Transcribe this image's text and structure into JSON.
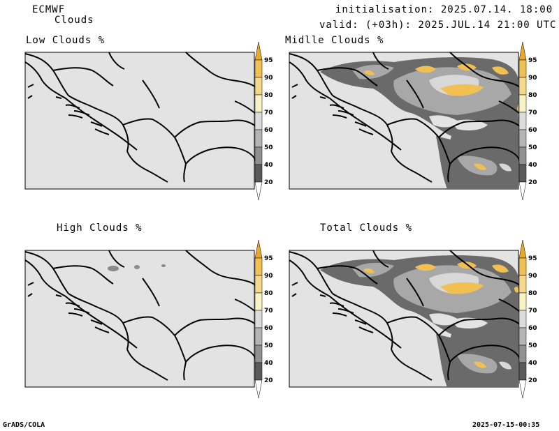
{
  "header": {
    "model": "ECMWF",
    "product": "Clouds",
    "init": "initialisation: 2025.07.14. 18:00 UTC",
    "valid": "valid: (+03h): 2025.JUL.14 21:00 UTC"
  },
  "panels": [
    {
      "title": "Low Clouds %"
    },
    {
      "title": "Midlle Clouds %"
    },
    {
      "title": "High Clouds %"
    },
    {
      "title": "Total Clouds %"
    }
  ],
  "colorbar": {
    "levels": [
      "95",
      "90",
      "80",
      "70",
      "60",
      "50",
      "40",
      "20"
    ],
    "colors": {
      "gt95": "#e6a82e",
      "90_95": "#f0c052",
      "80_90": "#f6d88a",
      "70_80": "#f8f2c4",
      "60_70": "#dcdcdc",
      "50_60": "#b4b4b4",
      "40_50": "#909090",
      "20_40": "#5a5a5a",
      "lt20": "#ffffff"
    }
  },
  "footer": {
    "left": "GrADS/COLA",
    "right": "2025-07-15-00:35"
  }
}
